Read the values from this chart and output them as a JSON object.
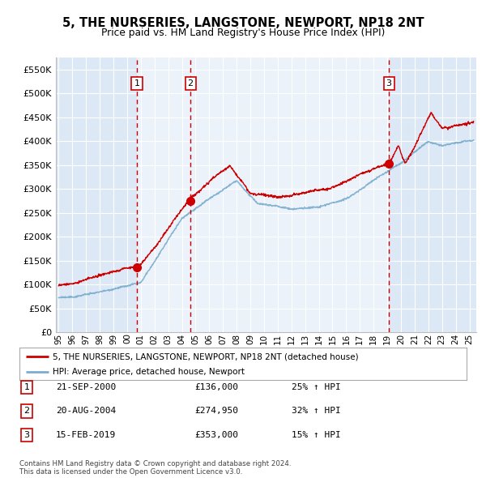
{
  "title": "5, THE NURSERIES, LANGSTONE, NEWPORT, NP18 2NT",
  "subtitle": "Price paid vs. HM Land Registry's House Price Index (HPI)",
  "legend_label_red": "5, THE NURSERIES, LANGSTONE, NEWPORT, NP18 2NT (detached house)",
  "legend_label_blue": "HPI: Average price, detached house, Newport",
  "footnote": "Contains HM Land Registry data © Crown copyright and database right 2024.\nThis data is licensed under the Open Government Licence v3.0.",
  "sale_events": [
    {
      "num": 1,
      "date": "21-SEP-2000",
      "price": 136000,
      "pct": "25%",
      "dir": "↑",
      "year_x": 2000.72
    },
    {
      "num": 2,
      "date": "20-AUG-2004",
      "price": 274950,
      "pct": "32%",
      "dir": "↑",
      "year_x": 2004.63
    },
    {
      "num": 3,
      "date": "15-FEB-2019",
      "price": 353000,
      "pct": "15%",
      "dir": "↑",
      "year_x": 2019.12
    }
  ],
  "red_color": "#cc0000",
  "blue_color": "#7aadce",
  "shade_color": "#dce8f5",
  "dashed_color": "#cc0000",
  "background_plot": "#dce8f5",
  "grid_color": "#ffffff",
  "ylim": [
    0,
    575000
  ],
  "yticks": [
    0,
    50000,
    100000,
    150000,
    200000,
    250000,
    300000,
    350000,
    400000,
    450000,
    500000,
    550000
  ],
  "xlim_start": 1994.8,
  "xlim_end": 2025.5
}
